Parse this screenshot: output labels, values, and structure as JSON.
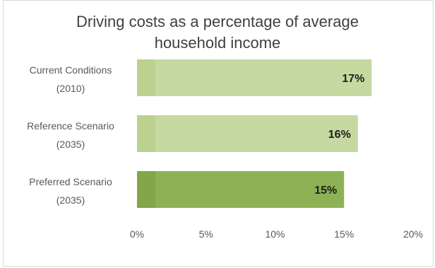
{
  "chart_data": {
    "type": "bar",
    "orientation": "horizontal",
    "title_lines": [
      "Driving costs as a percentage of average",
      "household income"
    ],
    "categories": [
      [
        "Current Conditions",
        "(2010)"
      ],
      [
        "Reference Scenario",
        "(2035)"
      ],
      [
        "Preferred Scenario",
        "(2035)"
      ]
    ],
    "values": [
      17,
      16,
      15
    ],
    "value_labels": [
      "17%",
      "16%",
      "15%"
    ],
    "xlim": [
      0,
      20
    ],
    "xticks": [
      0,
      5,
      10,
      15,
      20
    ],
    "xtick_labels": [
      "0%",
      "5%",
      "10%",
      "15%",
      "20%"
    ],
    "grid": false,
    "legend": "none",
    "colors": {
      "bar_light": "#c5d9a0",
      "bar_light_start": "#b9cf8d",
      "bar_dark": "#8db255",
      "bar_dark_start": "#7fa547"
    }
  }
}
